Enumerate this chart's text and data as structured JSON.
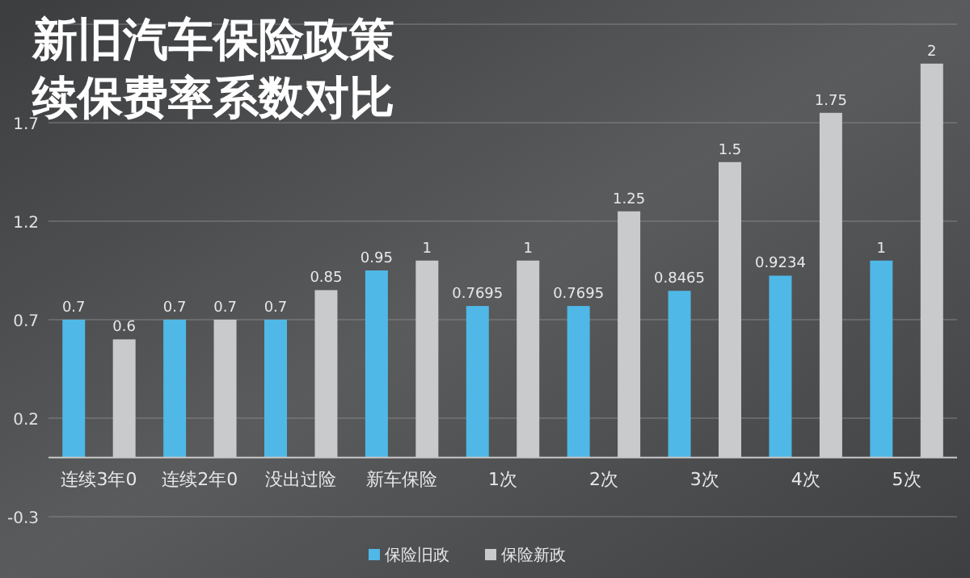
{
  "chart_data": {
    "type": "bar",
    "title": "新旧汽车保险政策续保费率系数对比",
    "categories": [
      "连续3年0",
      "连续2年0",
      "没出过险",
      "新车保险",
      "1次",
      "2次",
      "3次",
      "4次",
      "5次"
    ],
    "series": [
      {
        "name": "保险旧政",
        "color": "#4fb8e6",
        "values": [
          0.7,
          0.7,
          0.7,
          0.95,
          0.7695,
          0.7695,
          0.8465,
          0.9234,
          1
        ]
      },
      {
        "name": "保险新政",
        "color": "#c8cacc",
        "values": [
          0.6,
          0.7,
          0.85,
          1,
          1,
          1.25,
          1.5,
          1.75,
          2
        ]
      }
    ],
    "ylim": [
      -0.3,
      2.2
    ],
    "yticks": [
      -0.3,
      0.2,
      0.7,
      1.2,
      1.7,
      {
        "value": 2.2,
        "label": null
      }
    ],
    "grid": "y",
    "legend": "bottom",
    "data_labels": true
  }
}
